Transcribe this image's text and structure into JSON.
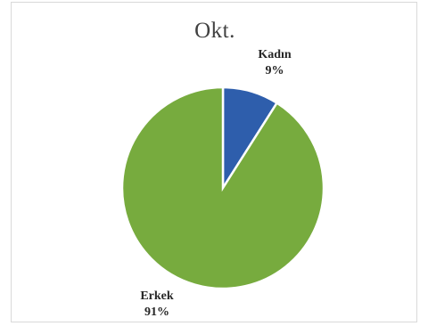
{
  "chart_data": {
    "type": "pie",
    "title": "Okt.",
    "categories": [
      "Kadın",
      "Erkek"
    ],
    "values": [
      9,
      91
    ],
    "labels": [
      {
        "name": "Kadın",
        "percent": "9%"
      },
      {
        "name": "Erkek",
        "percent": "91%"
      }
    ],
    "colors": [
      "#2e5eac",
      "#77ab3e"
    ],
    "legend": "none"
  }
}
